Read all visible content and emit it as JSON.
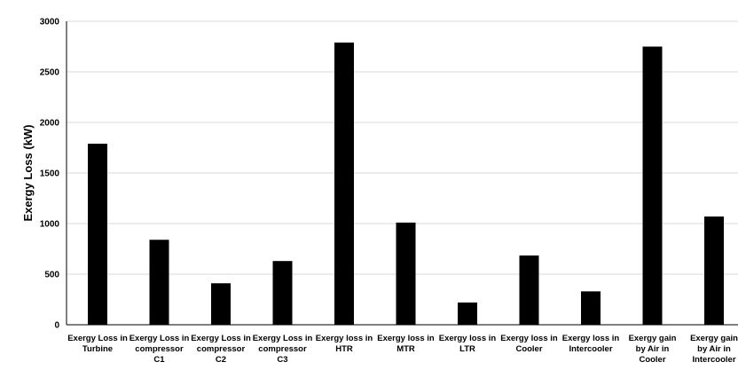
{
  "chart_data": {
    "type": "bar",
    "title": "",
    "xlabel": "",
    "ylabel": "Exergy Loss (kW)",
    "ylim": [
      0,
      3000
    ],
    "yticks": [
      0,
      500,
      1000,
      1500,
      2000,
      2500,
      3000
    ],
    "grid": true,
    "legend": "none",
    "bar_color": "#000000",
    "categories": [
      "Exergy Loss in Turbine",
      "Exergy Loss in compressor C1",
      "Exergy Loss in compressor C2",
      "Exergy Loss in compressor C3",
      "Exergy loss in HTR",
      "Exergy loss in MTR",
      "Exergy loss in LTR",
      "Exergy loss in Cooler",
      "Exergy loss in Intercooler",
      "Exergy gain by Air in Cooler",
      "Exergy gain by Air in Intercooler"
    ],
    "category_lines": [
      [
        "Exergy Loss in",
        "Turbine"
      ],
      [
        "Exergy Loss in",
        "compressor",
        "C1"
      ],
      [
        "Exergy Loss in",
        "compressor",
        "C2"
      ],
      [
        "Exergy Loss in",
        "compressor",
        "C3"
      ],
      [
        "Exergy loss in",
        "HTR"
      ],
      [
        "Exergy loss in",
        "MTR"
      ],
      [
        "Exergy loss in",
        "LTR"
      ],
      [
        "Exergy loss in",
        "Cooler"
      ],
      [
        "Exergy loss in",
        "Intercooler"
      ],
      [
        "Exergy gain",
        "by Air in",
        "Cooler"
      ],
      [
        "Exergy gain",
        "by Air in",
        "Intercooler"
      ]
    ],
    "values": [
      1790,
      840,
      410,
      630,
      2790,
      1010,
      220,
      685,
      330,
      2750,
      1070
    ]
  }
}
